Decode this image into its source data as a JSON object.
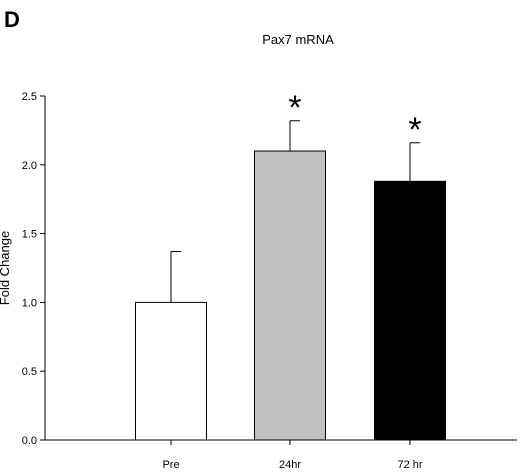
{
  "chart_data": {
    "type": "bar",
    "panel_label": "D",
    "title": "Pax7 mRNA",
    "ylabel": "Fold Change",
    "xlabel": "",
    "ylim": [
      0,
      2.5
    ],
    "yticks": [
      "0.0",
      "0.5",
      "1.0",
      "1.5",
      "2.0",
      "2.5"
    ],
    "categories": [
      "Pre",
      "24hr",
      "72 hr"
    ],
    "values": [
      1.0,
      2.1,
      1.88
    ],
    "errors": [
      0.37,
      0.22,
      0.28
    ],
    "bar_colors": [
      "#ffffff",
      "#c0c0c0",
      "#000000"
    ],
    "significance": [
      "",
      "*",
      "*"
    ],
    "grid": false,
    "legend": "none"
  }
}
